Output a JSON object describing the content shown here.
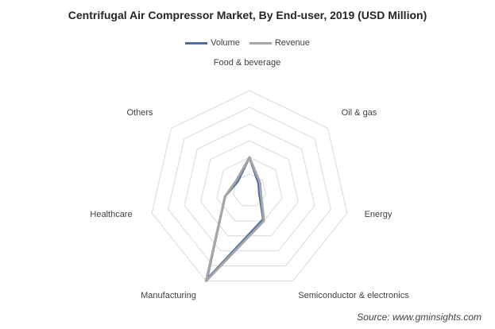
{
  "chart_data": {
    "type": "radar",
    "title": "Centrifugal Air Compressor Market, By End-user, 2019 (USD Million)",
    "categories": [
      "Food & beverage",
      "Oil & gas",
      "Energy",
      "Semiconductor & electronics",
      "Manufacturing",
      "Healthcare",
      "Others"
    ],
    "rlim": [
      0,
      6
    ],
    "rings": 6,
    "series": [
      {
        "name": "Volume",
        "color": "#4a6fa5",
        "values": [
          2.0,
          0.7,
          0.6,
          1.9,
          5.9,
          1.5,
          0.9
        ]
      },
      {
        "name": "Revenue",
        "color": "#a6a6a6",
        "values": [
          2.0,
          0.8,
          0.7,
          2.0,
          6.0,
          1.5,
          1.0
        ]
      }
    ],
    "legend_position": "top"
  },
  "source": "Source: www.gminsights.com"
}
